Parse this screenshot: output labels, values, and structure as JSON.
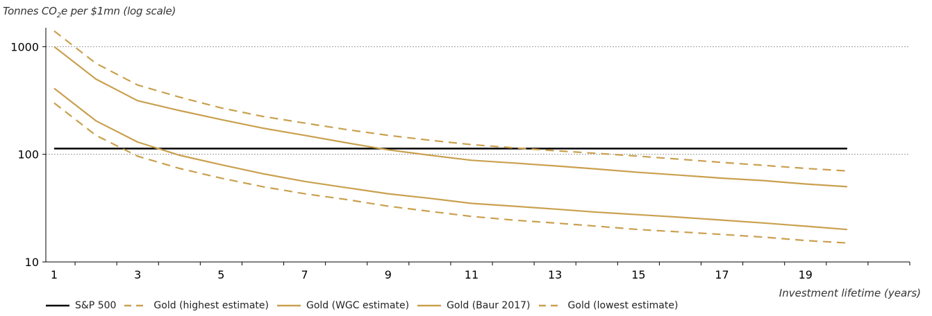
{
  "chart_data": {
    "type": "line",
    "ylabel_prefix": "Tonnes CO",
    "ylabel_sub": "2",
    "ylabel_suffix": "e per $1mn (log scale)",
    "xlabel": "Investment lifetime (years)",
    "yscale": "log",
    "ylim": [
      10,
      1500
    ],
    "xlim": [
      0.8,
      21.5
    ],
    "yticks": [
      10,
      100,
      1000
    ],
    "ytick_labels": [
      "10",
      "100",
      "1000"
    ],
    "xticks": [
      1,
      3,
      5,
      7,
      9,
      11,
      13,
      15,
      17,
      19
    ],
    "xtick_labels": [
      "1",
      "3",
      "5",
      "7",
      "9",
      "11",
      "13",
      "15",
      "17",
      "19"
    ],
    "x": [
      1,
      2,
      3,
      4,
      5,
      6,
      7,
      8,
      9,
      10,
      11,
      12,
      13,
      14,
      15,
      16,
      17,
      18,
      19,
      20
    ],
    "series": [
      {
        "name": "S&P 500",
        "color": "#000000",
        "dash": "solid",
        "values": [
          113,
          113,
          113,
          113,
          113,
          113,
          113,
          113,
          113,
          113,
          113,
          113,
          113,
          113,
          113,
          113,
          113,
          113,
          113,
          113
        ]
      },
      {
        "name": "Gold (highest estimate)",
        "color": "#c9a04e",
        "dash": "dashed",
        "values": [
          1400,
          700,
          440,
          340,
          270,
          225,
          195,
          170,
          150,
          135,
          123,
          115,
          108,
          102,
          96,
          90,
          84,
          79,
          74,
          70
        ]
      },
      {
        "name": "Gold (WGC estimate)",
        "color": "#c9a04e",
        "dash": "solid",
        "values": [
          1000,
          500,
          315,
          255,
          210,
          175,
          150,
          128,
          110,
          98,
          88,
          83,
          78,
          73,
          68,
          64,
          60,
          57,
          53,
          50
        ]
      },
      {
        "name": "Gold (Baur 2017)",
        "color": "#c9a04e",
        "dash": "solid",
        "values": [
          410,
          205,
          130,
          98,
          80,
          66,
          56,
          49,
          43,
          39,
          35,
          33,
          31,
          29,
          27.5,
          26,
          24.5,
          23,
          21.5,
          20
        ]
      },
      {
        "name": "Gold (lowest estimate)",
        "color": "#c9a04e",
        "dash": "dashed",
        "values": [
          300,
          150,
          96,
          74,
          60,
          50,
          43,
          38,
          33,
          29.5,
          26.5,
          24.5,
          23,
          21.5,
          20,
          19,
          18,
          17,
          15.8,
          15
        ]
      }
    ],
    "gridlines": [
      100,
      1000
    ],
    "legend_position": "bottom"
  }
}
